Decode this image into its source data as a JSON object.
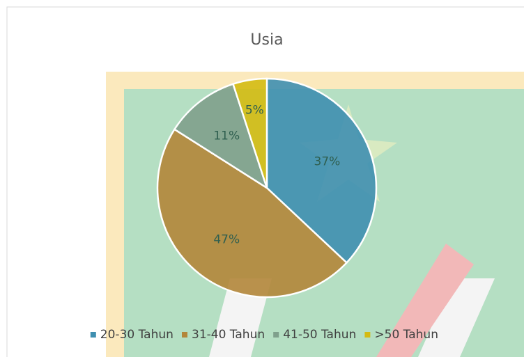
{
  "chart_data": {
    "type": "pie",
    "title": "Usia",
    "categories": [
      "20-30 Tahun",
      "31-40 Tahun",
      "41-50 Tahun",
      ">50 Tahun"
    ],
    "values": [
      37,
      47,
      11,
      5
    ],
    "value_labels": [
      "37%",
      "47%",
      "11%",
      "5%"
    ],
    "colors": [
      "#3f8fb0",
      "#b3863a",
      "#7fa08c",
      "#d4bb12"
    ],
    "legend": "bottom"
  }
}
